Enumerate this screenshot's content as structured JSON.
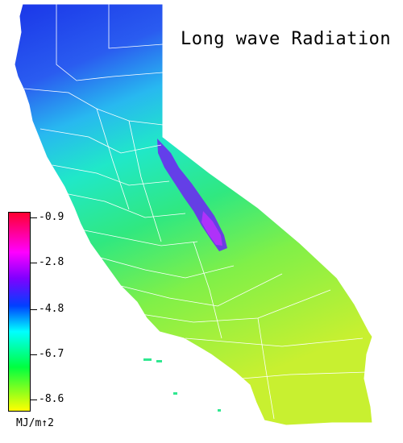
{
  "title": "Long wave Radiation",
  "legend": {
    "units": "MJ/m↑2",
    "ticks": [
      "-0.9",
      "-2.8",
      "-4.8",
      "-6.7",
      "-8.6"
    ],
    "colors": [
      "#ff0030",
      "#ff00ff",
      "#8000ff",
      "#0040ff",
      "#00ffff",
      "#00ff40",
      "#ffff00"
    ]
  },
  "map": {
    "region": "California",
    "fill_colors": {
      "north": "#2450f0",
      "mid": "#20c8f0",
      "central": "#30e890",
      "south": "#a8f040",
      "sierra_low": "#8020ff",
      "border": "#ffffff"
    }
  }
}
